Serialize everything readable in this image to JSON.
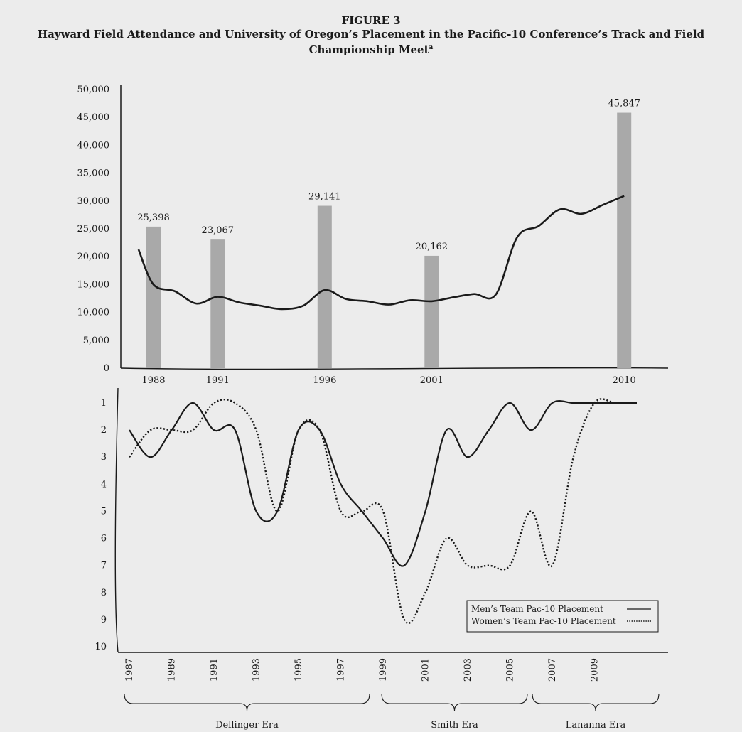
{
  "figure": {
    "number": "FIGURE 3",
    "title": "Hayward Field Attendance and University of Oregon’s Placement in the Pacific-10 Conference’s Track and Field Championship Meet",
    "footnote_marker": "a"
  },
  "colors": {
    "bar": "#a9a9a9",
    "line": "#1a1a1a",
    "background": "#ececec"
  },
  "chart_data": [
    {
      "type": "bar",
      "categories": [
        "1988",
        "1991",
        "1996",
        "2001",
        "2010"
      ],
      "values": [
        25398,
        23067,
        29141,
        20162,
        45847
      ],
      "data_labels": [
        "25,398",
        "23,067",
        "29,141",
        "20,162",
        "45,847"
      ],
      "y_ticks": [
        "0",
        "5,000",
        "10,000",
        "15,000",
        "20,000",
        "25,000",
        "30,000",
        "35,000",
        "40,000",
        "45,000",
        "50,000"
      ],
      "ylim": [
        0,
        50000
      ],
      "overlay_line": {
        "type": "line",
        "x": [
          1987.3,
          1988,
          1989,
          1990,
          1991,
          1992,
          1993,
          1994,
          1995,
          1996,
          1997,
          1998,
          1999,
          2000,
          2001,
          2002,
          2003,
          2004,
          2005,
          2006,
          2007,
          2008,
          2009,
          2010
        ],
        "values": [
          21300,
          15000,
          13800,
          11600,
          12800,
          11800,
          11200,
          10600,
          11200,
          14000,
          12400,
          12000,
          11400,
          12200,
          12000,
          12700,
          13300,
          13200,
          23500,
          25500,
          28500,
          27700,
          29300,
          30900
        ]
      }
    },
    {
      "type": "line",
      "x_ticks": [
        "1987",
        "1989",
        "1991",
        "1993",
        "1995",
        "1997",
        "1999",
        "2001",
        "2003",
        "2005",
        "2007",
        "2009"
      ],
      "y_ticks": [
        "1",
        "2",
        "3",
        "4",
        "5",
        "6",
        "7",
        "8",
        "9",
        "10"
      ],
      "ylim": [
        10,
        1
      ],
      "legend_position": "bottom-right",
      "series": [
        {
          "name": "Men’s Team Pac-10 Placement",
          "style": "solid",
          "x": [
            1987,
            1988,
            1989,
            1990,
            1991,
            1992,
            1993,
            1994,
            1995,
            1996,
            1997,
            1998,
            1999,
            2000,
            2001,
            2002,
            2003,
            2004,
            2005,
            2006,
            2007,
            2008,
            2009,
            2010,
            2011
          ],
          "values": [
            2,
            3,
            2,
            1,
            2,
            2,
            5,
            5,
            2,
            2,
            4,
            5,
            6,
            7,
            5,
            2,
            3,
            2,
            1,
            2,
            1,
            1,
            1,
            1,
            1
          ]
        },
        {
          "name": "Women’s Team Pac-10 Placement",
          "style": "dotted",
          "x": [
            1987,
            1988,
            1989,
            1990,
            1991,
            1992,
            1993,
            1994,
            1995,
            1996,
            1997,
            1998,
            1999,
            2000,
            2001,
            2002,
            2003,
            2004,
            2005,
            2006,
            2007,
            2008,
            2009,
            2010,
            2011
          ],
          "values": [
            3,
            2,
            2,
            2,
            1,
            1,
            2,
            5,
            2,
            2,
            5,
            5,
            5,
            9,
            8,
            6,
            7,
            7,
            7,
            5,
            7,
            3,
            1,
            1,
            1
          ]
        }
      ],
      "eras": [
        {
          "label": "Dellinger Era",
          "from": 1987,
          "to": 1998
        },
        {
          "label": "Smith Era",
          "from": 1999,
          "to": 2004
        },
        {
          "label": "Lananna Era",
          "from": 2005,
          "to": 2010
        }
      ]
    }
  ]
}
